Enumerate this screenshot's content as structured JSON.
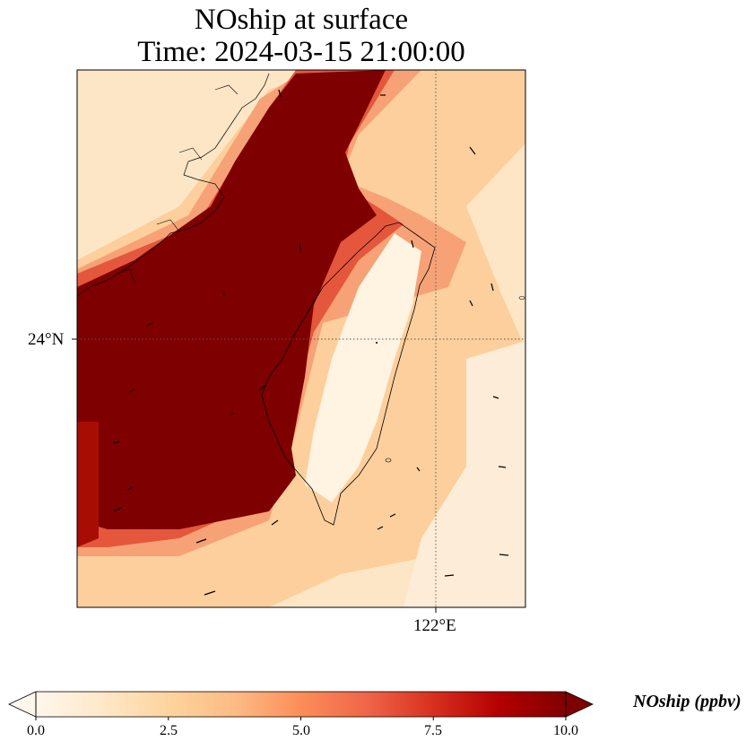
{
  "title": {
    "line1": "NOship at surface",
    "line2": "Time: 2024-03-15 21:00:00"
  },
  "axes": {
    "lat_label": "24°N",
    "lon_label": "122°E"
  },
  "map": {
    "variable": "NOship",
    "gridlines": "dotted",
    "coastlines": true,
    "wind_vectors": true,
    "colormap": "OrRd",
    "high_region_color": "#7f0000",
    "background_color": "#fff7ec"
  },
  "colorbar": {
    "label": "NOship (ppbv)",
    "min": 0.0,
    "max": 10.0,
    "extend": "both",
    "ticks": [
      "0.0",
      "2.5",
      "5.0",
      "7.5",
      "10.0"
    ],
    "colors": [
      "#fff7ec",
      "#fee8c8",
      "#fdd49e",
      "#fdbb84",
      "#fc8d59",
      "#ef6548",
      "#d7301f",
      "#b30000",
      "#7f0000"
    ]
  }
}
